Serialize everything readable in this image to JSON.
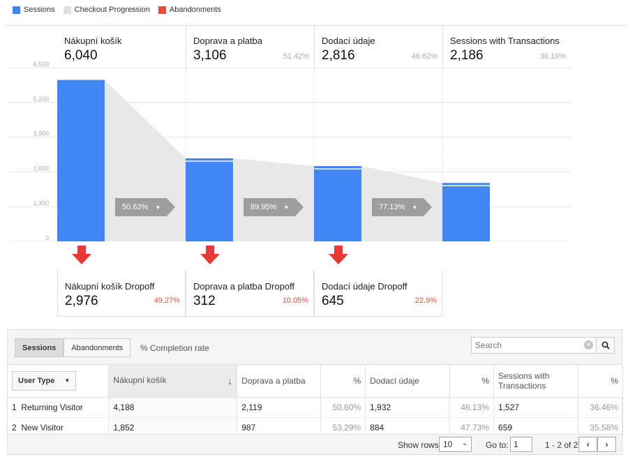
{
  "legend": [
    {
      "label": "Sessions",
      "color": "#4285f4"
    },
    {
      "label": "Checkout Progression",
      "color": "#e0e0e0"
    },
    {
      "label": "Abandonments",
      "color": "#e74c3c"
    }
  ],
  "chart_data": {
    "type": "bar",
    "title": "",
    "ylim": [
      0,
      6500
    ],
    "yticks": [
      "6,500",
      "5,200",
      "3,900",
      "2,600",
      "1,300",
      "0"
    ],
    "categories": [
      "Nákupní košík",
      "Doprava a platba",
      "Dodací údaje",
      "Sessions with Transactions"
    ],
    "series": [
      {
        "name": "Sessions",
        "values": [
          6040,
          3106,
          2816,
          2186
        ]
      }
    ],
    "steps": [
      {
        "name": "Nákupní košík",
        "value": "6,040",
        "pct": ""
      },
      {
        "name": "Doprava a platba",
        "value": "3,106",
        "pct": "51.42%"
      },
      {
        "name": "Dodací údaje",
        "value": "2,816",
        "pct": "46.62%"
      },
      {
        "name": "Sessions with Transactions",
        "value": "2,186",
        "pct": "36.19%"
      }
    ],
    "progression": [
      "50.63%",
      "89.95%",
      "77.13%"
    ],
    "dropoffs": [
      {
        "name": "Nákupní košík Dropoff",
        "value": "2,976",
        "pct": "49.27%"
      },
      {
        "name": "Doprava a platba Dropoff",
        "value": "312",
        "pct": "10.05%"
      },
      {
        "name": "Dodací údaje Dropoff",
        "value": "645",
        "pct": "22.9%"
      }
    ]
  },
  "controls": {
    "sessions": "Sessions",
    "abandonments": "Abandonments",
    "completion": "% Completion rate",
    "search_placeholder": "Search"
  },
  "table": {
    "dimension": "User Type",
    "headers": [
      "Nákupní košík",
      "Doprava a platba",
      "%",
      "Dodací údaje",
      "%",
      "Sessions with Transactions",
      "%"
    ],
    "rows": [
      {
        "idx": "1",
        "type": "Returning Visitor",
        "c1": "4,188",
        "c2": "2,119",
        "p2": "50.60%",
        "c3": "1,932",
        "p3": "46.13%",
        "c4": "1,527",
        "p4": "36.46%"
      },
      {
        "idx": "2",
        "type": "New Visitor",
        "c1": "1,852",
        "c2": "987",
        "p2": "53.29%",
        "c3": "884",
        "p3": "47.73%",
        "c4": "659",
        "p4": "35.58%"
      }
    ]
  },
  "footer": {
    "show_rows": "Show rows:",
    "rows_value": "10",
    "goto": "Go to:",
    "goto_value": "1",
    "range": "1 - 2 of 2"
  }
}
